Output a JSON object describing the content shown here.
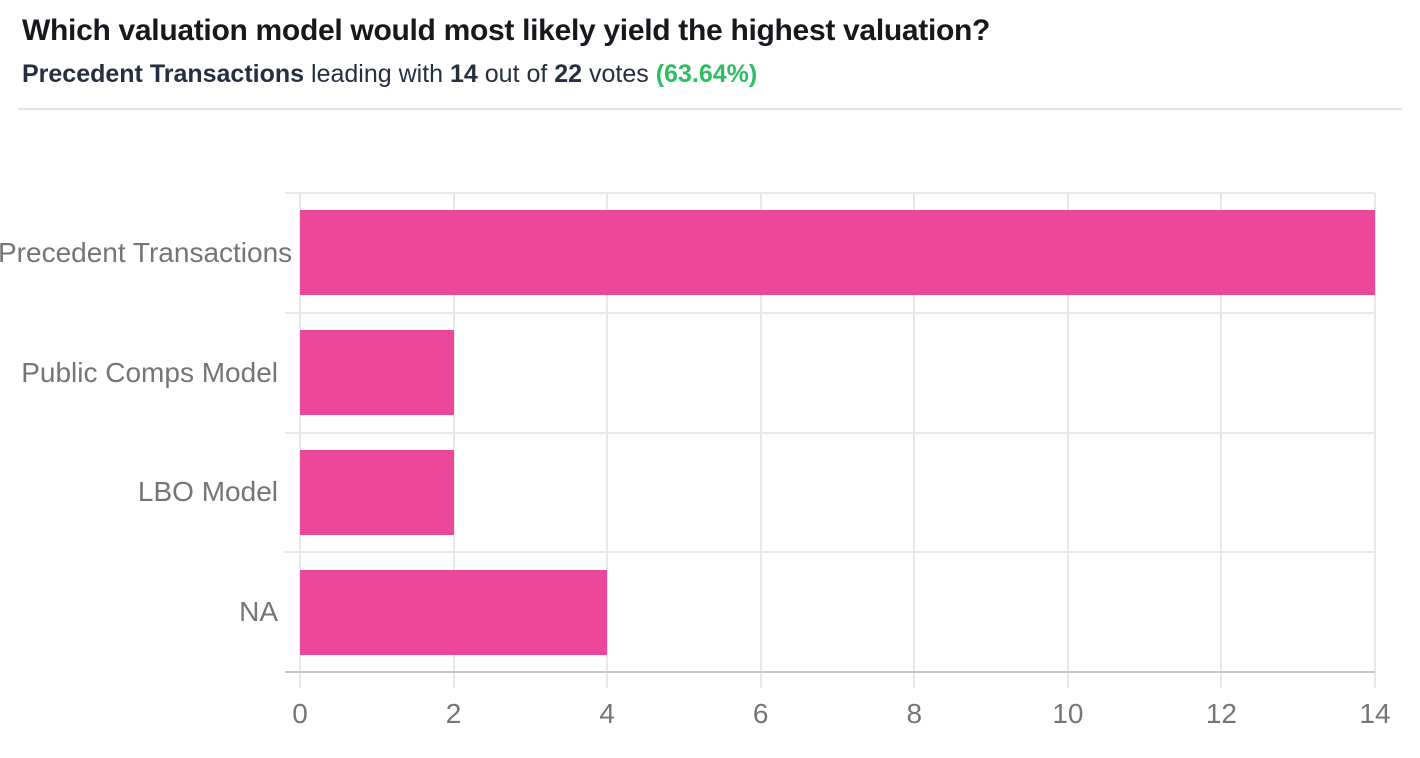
{
  "header": {
    "title": "Which valuation model would most likely yield the highest valuation?",
    "subtitle": {
      "leader": "Precedent Transactions",
      "leading_text": " leading with ",
      "votes_for": "14",
      "outof_text": " out of ",
      "votes_total": "22",
      "votes_text": " votes ",
      "percent": "(63.64%)"
    }
  },
  "colors": {
    "bar": "#EC4899",
    "grid": "#E8E8E8",
    "axis": "#C6C6C6",
    "label_gray": "#757575",
    "title": "#15181D",
    "subtitle": "#252F3F",
    "green": "#2DBE64",
    "divider": "#E4E4E4"
  },
  "chart_data": {
    "type": "bar",
    "orientation": "horizontal",
    "title": "",
    "xlabel": "",
    "ylabel": "",
    "categories": [
      "Precedent Transactions",
      "Public Comps Model",
      "LBO Model",
      "NA"
    ],
    "values": [
      14,
      2,
      2,
      4
    ],
    "xlim": [
      0,
      14
    ],
    "xticks": [
      0,
      2,
      4,
      6,
      8,
      10,
      12,
      14
    ],
    "grid": true,
    "legend": false,
    "bar_color": "#EC4899"
  }
}
